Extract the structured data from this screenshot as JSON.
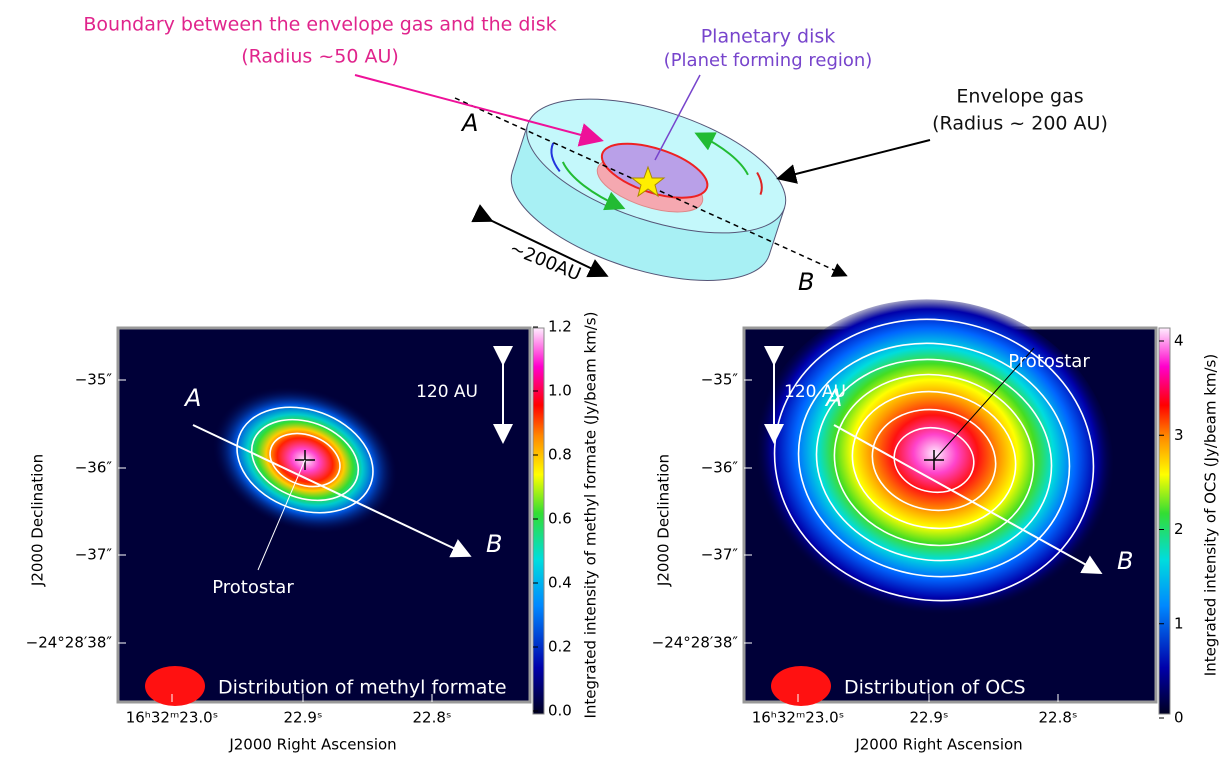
{
  "diagram": {
    "boundary_label": "Boundary between the envelope gas and the disk",
    "boundary_radius": "(Radius ~50 AU)",
    "disk_label": "Planetary disk",
    "disk_sub": "(Planet forming region)",
    "envelope_label": "Envelope gas",
    "envelope_radius": "(Radius ~ 200 AU)",
    "axis_a": "A",
    "axis_b": "B",
    "size_label": "~200AU"
  },
  "left_panel": {
    "y_ticks": [
      "−35″",
      "−36″",
      "−37″",
      "−24°28′38″"
    ],
    "x_ticks": [
      "16ʰ32ᵐ23.0ˢ",
      "22.9ˢ",
      "22.8ˢ"
    ],
    "x_label": "J2000 Right Ascension",
    "y_label": "J2000 Declination",
    "colorbar_label": "Integrated intensity of methyl formate (Jy/beam km/s)",
    "colorbar_ticks": [
      "0.0",
      "0.2",
      "0.4",
      "0.6",
      "0.8",
      "1.0",
      "1.2"
    ],
    "scale": "120 AU",
    "point_a": "A",
    "point_b": "B",
    "protostar": "Protostar",
    "caption": "Distribution of methyl formate"
  },
  "right_panel": {
    "y_ticks": [
      "−35″",
      "−36″",
      "−37″",
      "−24°28′38″"
    ],
    "x_ticks": [
      "16ʰ32ᵐ23.0ˢ",
      "22.9ˢ",
      "22.8ˢ"
    ],
    "x_label": "J2000 Right Ascension",
    "y_label": "J2000 Declination",
    "colorbar_label": "Integrated intensity of OCS (Jy/beam km/s)",
    "colorbar_ticks": [
      "0",
      "1",
      "2",
      "3",
      "4"
    ],
    "scale": "120 AU",
    "point_a": "A",
    "point_b": "B",
    "protostar": "Protostar",
    "caption": "Distribution of OCS"
  }
}
